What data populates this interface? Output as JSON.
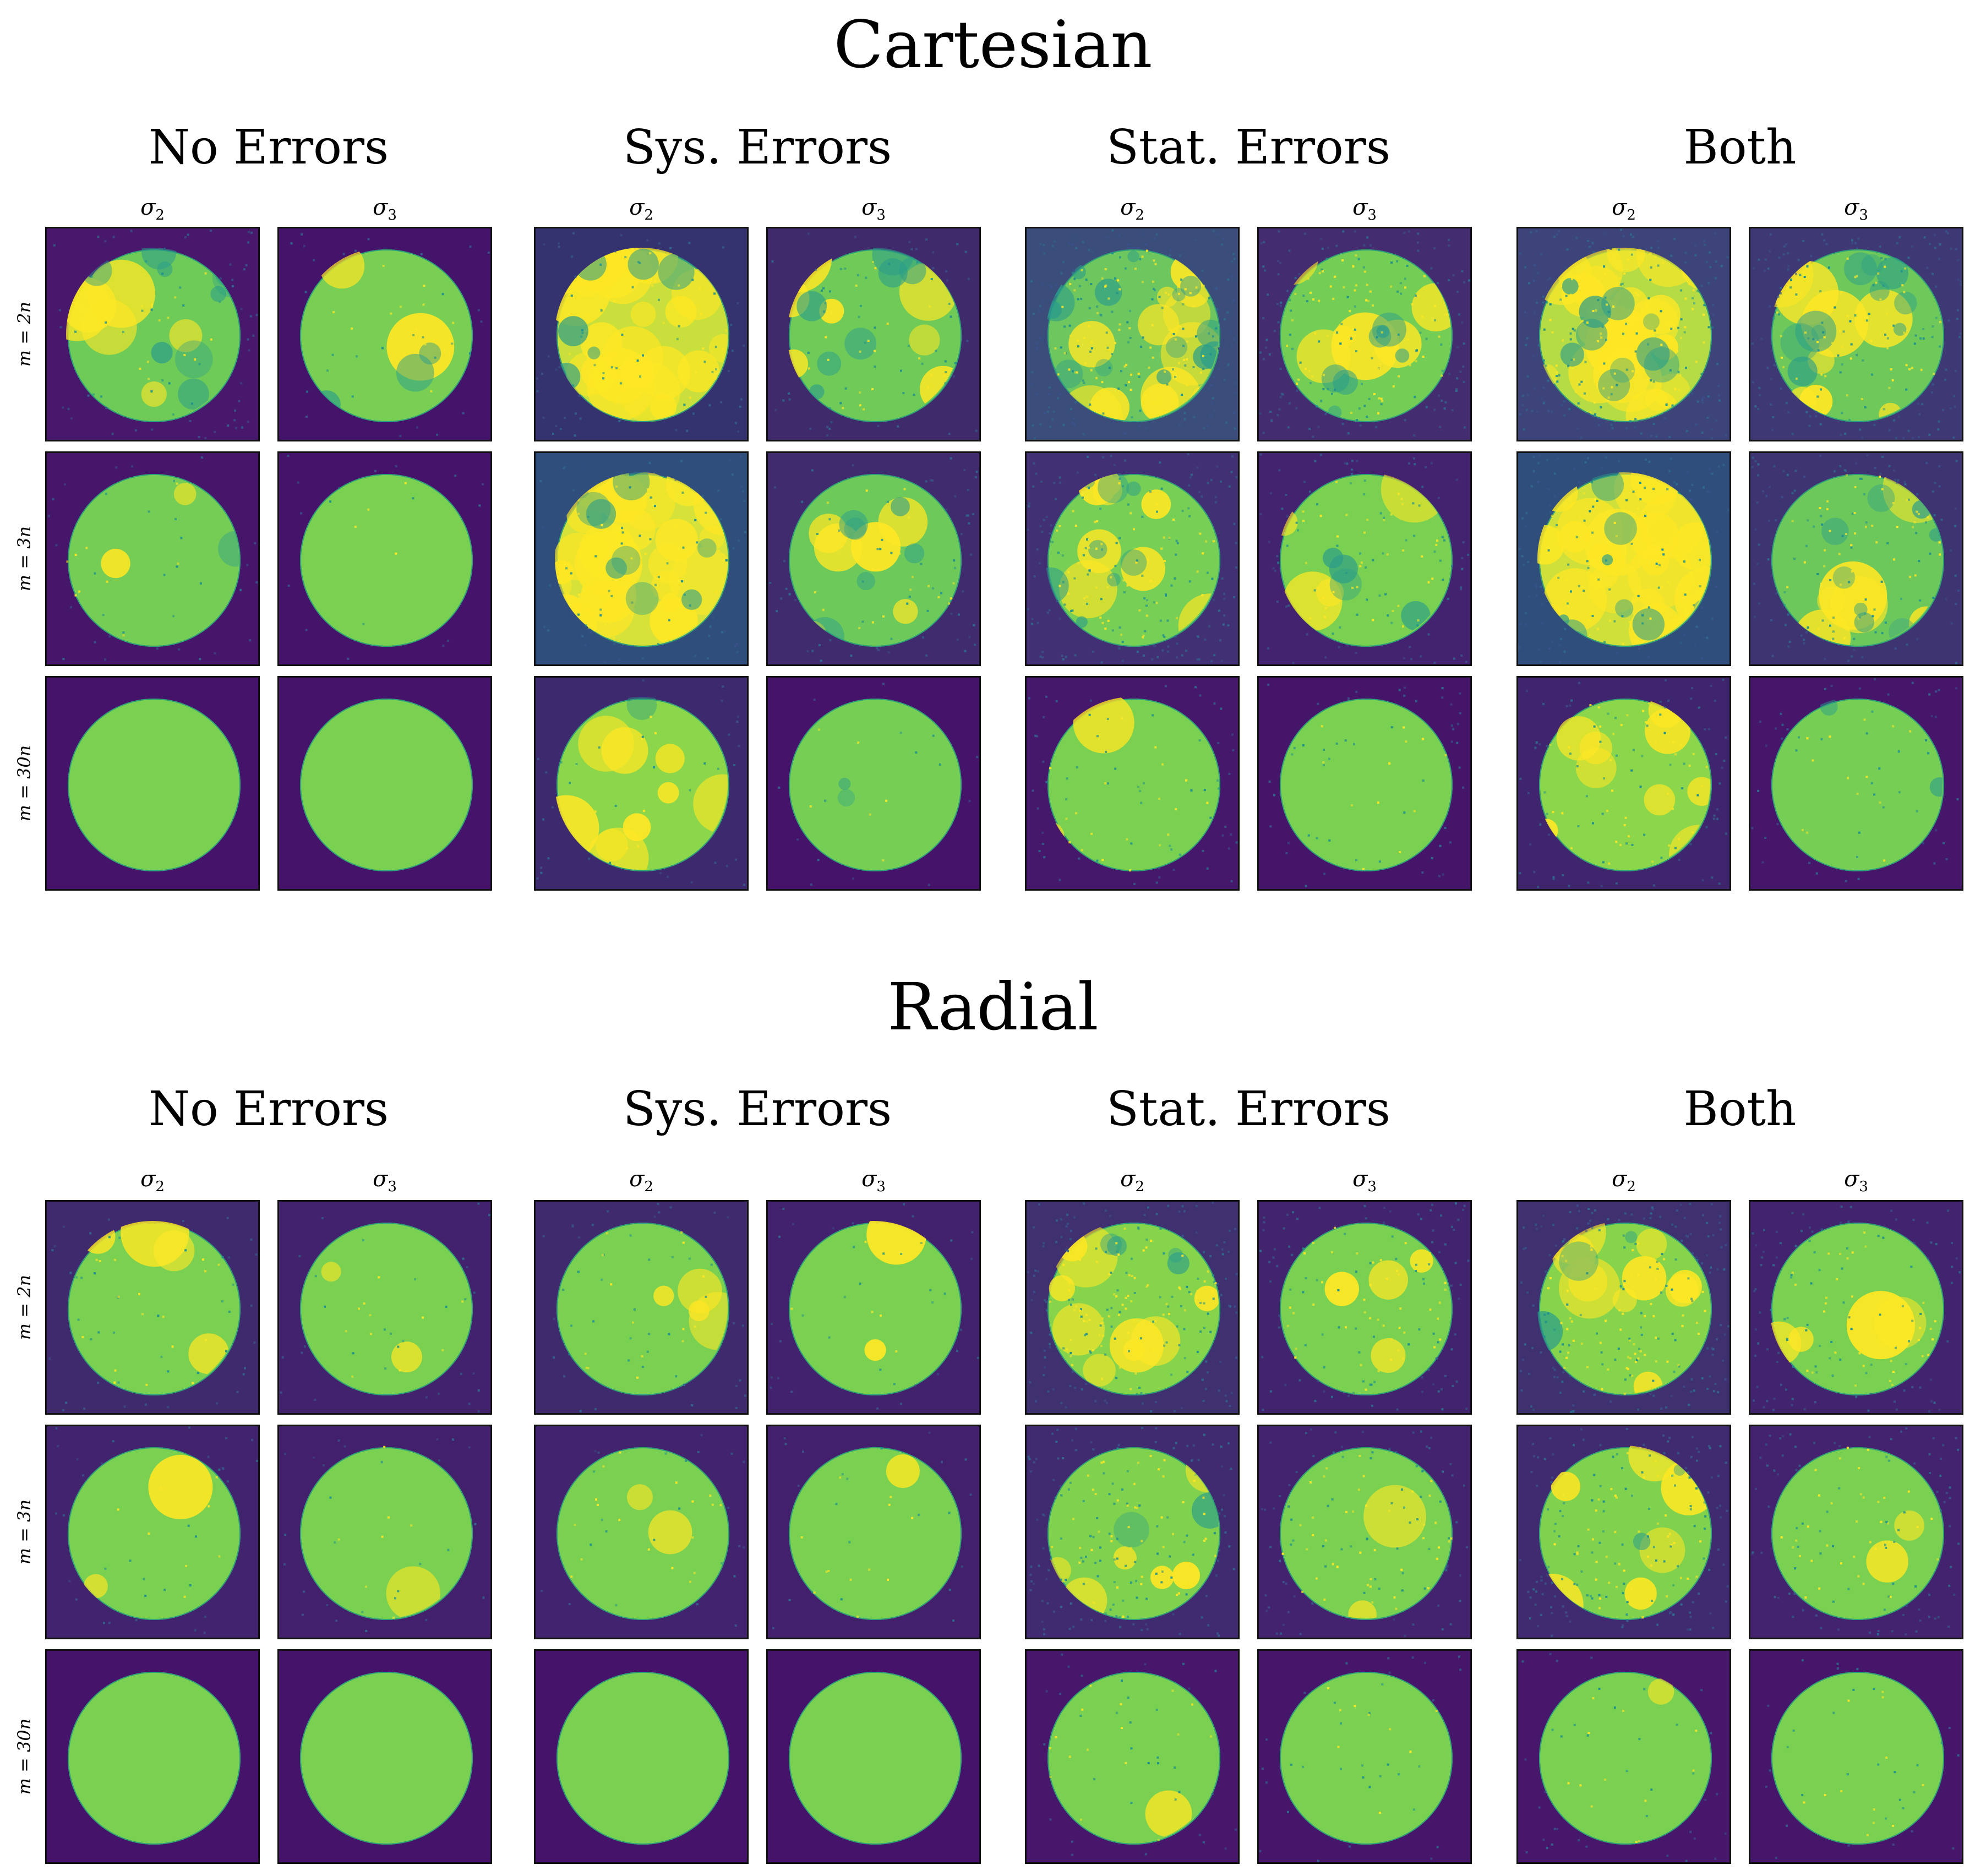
{
  "sections": [
    {
      "title": "Cartesian",
      "groups": [
        "No Errors",
        "Sys. Errors",
        "Stat. Errors",
        "Both"
      ],
      "column_labels": [
        "σ2",
        "σ3"
      ],
      "row_labels": [
        "m = 2n",
        "m = 3n",
        "m = 30n"
      ],
      "panels": [
        [
          {
            "bg": "#48186c",
            "disc": "#6fcb58",
            "hot": 0.15,
            "dark": 0.25,
            "noise": 0.2
          },
          {
            "bg": "#44146a",
            "disc": "#78cf54",
            "hot": 0.05,
            "dark": 0.08,
            "noise": 0.1
          },
          {
            "bg": "#35336f",
            "disc": "#c8df3c",
            "hot": 0.65,
            "dark": 0.18,
            "noise": 0.25
          },
          {
            "bg": "#3f2a6c",
            "disc": "#6fca58",
            "hot": 0.2,
            "dark": 0.2,
            "noise": 0.2
          },
          {
            "bg": "#3b4e7b",
            "disc": "#6dc65e",
            "hot": 0.3,
            "dark": 0.4,
            "noise": 0.6
          },
          {
            "bg": "#432d70",
            "disc": "#74cd55",
            "hot": 0.15,
            "dark": 0.2,
            "noise": 0.5
          },
          {
            "bg": "#3c4479",
            "disc": "#b5dc45",
            "hot": 0.6,
            "dark": 0.3,
            "noise": 0.6
          },
          {
            "bg": "#3e3974",
            "disc": "#6ec95a",
            "hot": 0.2,
            "dark": 0.3,
            "noise": 0.5
          }
        ],
        [
          {
            "bg": "#46166a",
            "disc": "#75cd56",
            "hot": 0.05,
            "dark": 0.08,
            "noise": 0.1
          },
          {
            "bg": "#45146a",
            "disc": "#7ad151",
            "hot": 0.0,
            "dark": 0.0,
            "noise": 0.05
          },
          {
            "bg": "#2f4e7c",
            "disc": "#d6e23a",
            "hot": 0.7,
            "dark": 0.2,
            "noise": 0.25
          },
          {
            "bg": "#3f2b6d",
            "disc": "#6dca5a",
            "hot": 0.15,
            "dark": 0.2,
            "noise": 0.2
          },
          {
            "bg": "#413073",
            "disc": "#78cf55",
            "hot": 0.2,
            "dark": 0.2,
            "noise": 0.5
          },
          {
            "bg": "#43236f",
            "disc": "#7ad151",
            "hot": 0.1,
            "dark": 0.1,
            "noise": 0.3
          },
          {
            "bg": "#2f4e7c",
            "disc": "#d0e03b",
            "hot": 0.65,
            "dark": 0.25,
            "noise": 0.4
          },
          {
            "bg": "#3d3471",
            "disc": "#6dc85b",
            "hot": 0.15,
            "dark": 0.3,
            "noise": 0.4
          }
        ],
        [
          {
            "bg": "#45146a",
            "disc": "#7ad151",
            "hot": 0.0,
            "dark": 0.0,
            "noise": 0.0
          },
          {
            "bg": "#45146a",
            "disc": "#7ad151",
            "hot": 0.0,
            "dark": 0.0,
            "noise": 0.0
          },
          {
            "bg": "#3d2a6e",
            "disc": "#8bd64a",
            "hot": 0.25,
            "dark": 0.05,
            "noise": 0.1
          },
          {
            "bg": "#45146a",
            "disc": "#76cf54",
            "hot": 0.0,
            "dark": 0.05,
            "noise": 0.05
          },
          {
            "bg": "#46186b",
            "disc": "#7ad151",
            "hot": 0.05,
            "dark": 0.0,
            "noise": 0.2
          },
          {
            "bg": "#45156a",
            "disc": "#7ad151",
            "hot": 0.0,
            "dark": 0.0,
            "noise": 0.15
          },
          {
            "bg": "#3f256d",
            "disc": "#8bd64a",
            "hot": 0.25,
            "dark": 0.05,
            "noise": 0.3
          },
          {
            "bg": "#45166a",
            "disc": "#76cf54",
            "hot": 0.0,
            "dark": 0.05,
            "noise": 0.15
          }
        ]
      ]
    },
    {
      "title": "Radial",
      "groups": [
        "No Errors",
        "Sys. Errors",
        "Stat. Errors",
        "Both"
      ],
      "column_labels": [
        "σ2",
        "σ3"
      ],
      "row_labels": [
        "m = 2n",
        "m = 3n",
        "m = 30n"
      ],
      "panels": [
        [
          {
            "bg": "#402a6e",
            "disc": "#7ad151",
            "hot": 0.1,
            "dark": 0.0,
            "noise": 0.15
          },
          {
            "bg": "#42216d",
            "disc": "#7ad151",
            "hot": 0.05,
            "dark": 0.0,
            "noise": 0.1
          },
          {
            "bg": "#402a6e",
            "disc": "#7ad151",
            "hot": 0.1,
            "dark": 0.0,
            "noise": 0.15
          },
          {
            "bg": "#42216d",
            "disc": "#7ad151",
            "hot": 0.05,
            "dark": 0.0,
            "noise": 0.1
          },
          {
            "bg": "#3f3070",
            "disc": "#86d44c",
            "hot": 0.25,
            "dark": 0.1,
            "noise": 0.55
          },
          {
            "bg": "#42246e",
            "disc": "#7ad151",
            "hot": 0.1,
            "dark": 0.0,
            "noise": 0.35
          },
          {
            "bg": "#3f3070",
            "disc": "#86d44c",
            "hot": 0.25,
            "dark": 0.1,
            "noise": 0.55
          },
          {
            "bg": "#42246e",
            "disc": "#7ad151",
            "hot": 0.1,
            "dark": 0.0,
            "noise": 0.35
          }
        ],
        [
          {
            "bg": "#42236d",
            "disc": "#7ad151",
            "hot": 0.05,
            "dark": 0.0,
            "noise": 0.1
          },
          {
            "bg": "#43206c",
            "disc": "#7ad151",
            "hot": 0.03,
            "dark": 0.0,
            "noise": 0.08
          },
          {
            "bg": "#42236d",
            "disc": "#7ad151",
            "hot": 0.05,
            "dark": 0.0,
            "noise": 0.1
          },
          {
            "bg": "#43206c",
            "disc": "#7ad151",
            "hot": 0.03,
            "dark": 0.0,
            "noise": 0.08
          },
          {
            "bg": "#412b70",
            "disc": "#80d24e",
            "hot": 0.15,
            "dark": 0.05,
            "noise": 0.45
          },
          {
            "bg": "#43236e",
            "disc": "#7ad151",
            "hot": 0.05,
            "dark": 0.0,
            "noise": 0.3
          },
          {
            "bg": "#412b70",
            "disc": "#80d24e",
            "hot": 0.15,
            "dark": 0.05,
            "noise": 0.45
          },
          {
            "bg": "#43236e",
            "disc": "#7ad151",
            "hot": 0.05,
            "dark": 0.0,
            "noise": 0.3
          }
        ],
        [
          {
            "bg": "#45146a",
            "disc": "#7ad151",
            "hot": 0.0,
            "dark": 0.0,
            "noise": 0.0
          },
          {
            "bg": "#45146a",
            "disc": "#7ad151",
            "hot": 0.0,
            "dark": 0.0,
            "noise": 0.0
          },
          {
            "bg": "#45146a",
            "disc": "#7ad151",
            "hot": 0.0,
            "dark": 0.0,
            "noise": 0.0
          },
          {
            "bg": "#45146a",
            "disc": "#7ad151",
            "hot": 0.0,
            "dark": 0.0,
            "noise": 0.0
          },
          {
            "bg": "#46176b",
            "disc": "#7ad151",
            "hot": 0.02,
            "dark": 0.0,
            "noise": 0.12
          },
          {
            "bg": "#46166b",
            "disc": "#7ad151",
            "hot": 0.0,
            "dark": 0.0,
            "noise": 0.1
          },
          {
            "bg": "#46176b",
            "disc": "#7ad151",
            "hot": 0.02,
            "dark": 0.0,
            "noise": 0.12
          },
          {
            "bg": "#46166b",
            "disc": "#7ad151",
            "hot": 0.0,
            "dark": 0.0,
            "noise": 0.1
          }
        ]
      ]
    }
  ]
}
